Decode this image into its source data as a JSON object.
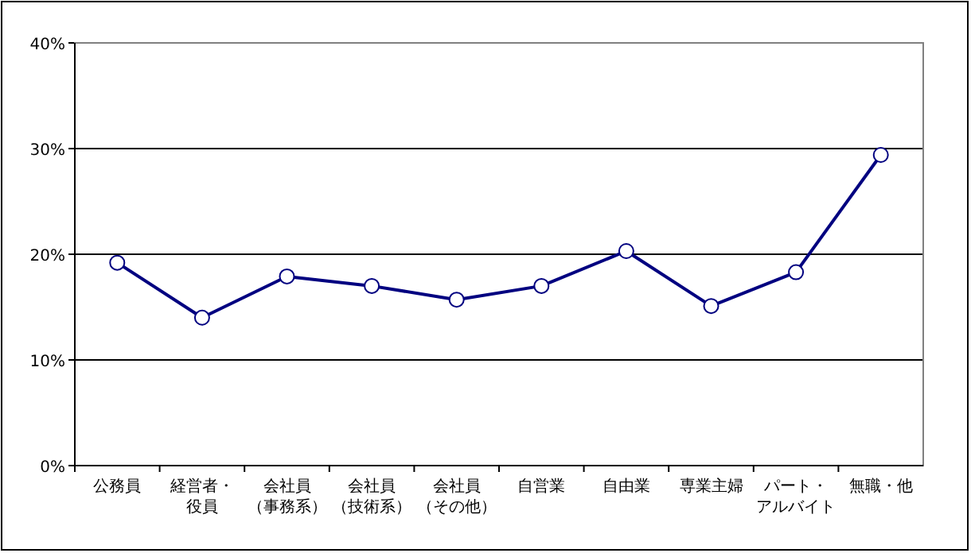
{
  "chart_data": {
    "type": "line",
    "categories": [
      "公務員",
      "経営者・役員",
      "会社員（事務系）",
      "会社員（技術系）",
      "会社員（その他）",
      "自営業",
      "自由業",
      "専業主婦",
      "パート・アルバイト",
      "無職・他"
    ],
    "series": [
      {
        "color": "#000080",
        "values": [
          19.2,
          14.0,
          17.9,
          17.0,
          15.7,
          17.0,
          20.3,
          15.1,
          18.3,
          29.4
        ]
      }
    ],
    "ylim": [
      0,
      40
    ],
    "yticks": [
      {
        "value": 0,
        "label": "0%"
      },
      {
        "value": 10,
        "label": "10%"
      },
      {
        "value": 20,
        "label": "20%"
      },
      {
        "value": 30,
        "label": "30%"
      },
      {
        "value": 40,
        "label": "40%"
      }
    ],
    "grid": "y",
    "marker": "circle",
    "line_style": "solid"
  }
}
